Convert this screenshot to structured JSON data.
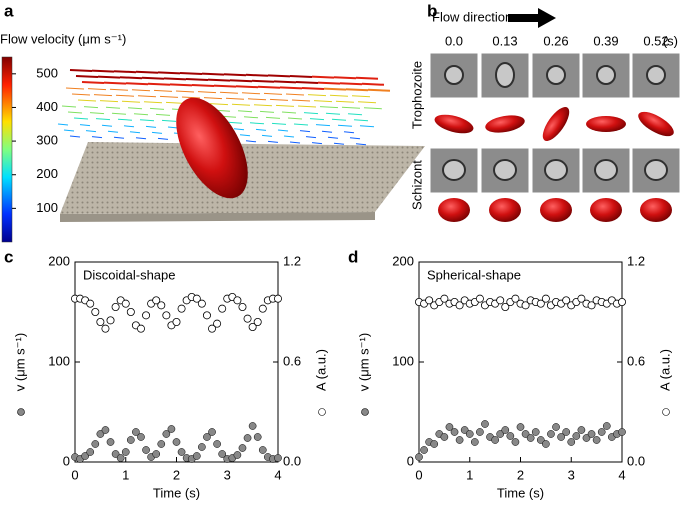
{
  "panels": {
    "a": {
      "label": "a",
      "colorbar_title": "Flow velocity (μm s⁻¹)",
      "clim": [
        0,
        550
      ],
      "cticks": [
        100,
        200,
        300,
        400,
        500
      ]
    },
    "b": {
      "label": "b",
      "flow_label": "Flow direction",
      "times": [
        "0.0",
        "0.13",
        "0.26",
        "0.39",
        "0.52"
      ],
      "time_unit": "(s)",
      "rows": [
        "Trophozoite",
        "Schizont"
      ]
    }
  },
  "chart_data": [
    {
      "type": "scatter",
      "label": "c",
      "annotation": "Discoidal-shape",
      "xlabel": "Time (s)",
      "ylabel": "v (μm s⁻¹)",
      "y2label": "A (a.u.)",
      "x": [
        0,
        0.1,
        0.2,
        0.3,
        0.4,
        0.5,
        0.6,
        0.7,
        0.8,
        0.9,
        1.0,
        1.1,
        1.2,
        1.3,
        1.4,
        1.5,
        1.6,
        1.7,
        1.8,
        1.9,
        2.0,
        2.1,
        2.2,
        2.3,
        2.4,
        2.5,
        2.6,
        2.7,
        2.8,
        2.9,
        3.0,
        3.1,
        3.2,
        3.3,
        3.4,
        3.5,
        3.6,
        3.7,
        3.8,
        3.9,
        4.0
      ],
      "xlim": [
        0,
        4
      ],
      "xticks": [
        0,
        1,
        2,
        3,
        4
      ],
      "ylim": [
        0,
        200
      ],
      "yticks": [
        0,
        100,
        200
      ],
      "y2lim": [
        0,
        1.2
      ],
      "y2ticks": [
        {
          "value": 0,
          "label": "0.0"
        },
        0.6,
        1.2
      ],
      "series": [
        {
          "color": "#888888",
          "marker_fill": "filled",
          "values": [
            5,
            3,
            6,
            10,
            18,
            28,
            32,
            20,
            8,
            4,
            10,
            22,
            30,
            25,
            12,
            5,
            8,
            18,
            28,
            33,
            20,
            10,
            4,
            3,
            6,
            15,
            25,
            30,
            18,
            8,
            3,
            4,
            7,
            14,
            24,
            36,
            25,
            12,
            5,
            3,
            4
          ]
        },
        {
          "color": "#ffffff",
          "marker_fill": "open",
          "axis": "y2",
          "values": [
            0.98,
            0.98,
            0.97,
            0.95,
            0.9,
            0.84,
            0.8,
            0.85,
            0.93,
            0.97,
            0.95,
            0.9,
            0.82,
            0.8,
            0.88,
            0.95,
            0.97,
            0.94,
            0.88,
            0.82,
            0.84,
            0.92,
            0.97,
            0.99,
            0.98,
            0.95,
            0.88,
            0.8,
            0.83,
            0.92,
            0.98,
            0.99,
            0.97,
            0.93,
            0.86,
            0.81,
            0.84,
            0.92,
            0.97,
            0.98,
            0.98
          ]
        }
      ]
    },
    {
      "type": "scatter",
      "label": "d",
      "annotation": "Spherical-shape",
      "xlabel": "Time (s)",
      "ylabel": "v (μm s⁻¹)",
      "y2label": "A (a.u.)",
      "x": [
        0,
        0.1,
        0.2,
        0.3,
        0.4,
        0.5,
        0.6,
        0.7,
        0.8,
        0.9,
        1.0,
        1.1,
        1.2,
        1.3,
        1.4,
        1.5,
        1.6,
        1.7,
        1.8,
        1.9,
        2.0,
        2.1,
        2.2,
        2.3,
        2.4,
        2.5,
        2.6,
        2.7,
        2.8,
        2.9,
        3.0,
        3.1,
        3.2,
        3.3,
        3.4,
        3.5,
        3.6,
        3.7,
        3.8,
        3.9,
        4.0
      ],
      "xlim": [
        0,
        4
      ],
      "xticks": [
        0,
        1,
        2,
        3,
        4
      ],
      "ylim": [
        0,
        200
      ],
      "yticks": [
        0,
        100,
        200
      ],
      "y2lim": [
        0,
        1.2
      ],
      "y2ticks": [
        {
          "value": 0,
          "label": "0.0"
        },
        0.6,
        1.2
      ],
      "series": [
        {
          "color": "#888888",
          "marker_fill": "filled",
          "values": [
            5,
            12,
            20,
            18,
            28,
            25,
            35,
            30,
            22,
            32,
            28,
            20,
            30,
            38,
            25,
            22,
            28,
            32,
            26,
            20,
            35,
            28,
            24,
            30,
            22,
            18,
            28,
            35,
            25,
            30,
            20,
            26,
            32,
            24,
            28,
            22,
            30,
            36,
            25,
            28,
            30
          ]
        },
        {
          "color": "#ffffff",
          "marker_fill": "open",
          "axis": "y2",
          "values": [
            0.96,
            0.95,
            0.97,
            0.94,
            0.96,
            0.98,
            0.95,
            0.96,
            0.94,
            0.97,
            0.95,
            0.96,
            0.98,
            0.94,
            0.96,
            0.95,
            0.97,
            0.93,
            0.96,
            0.98,
            0.95,
            0.94,
            0.97,
            0.96,
            0.95,
            0.98,
            0.94,
            0.96,
            0.95,
            0.97,
            0.94,
            0.96,
            0.98,
            0.95,
            0.94,
            0.97,
            0.96,
            0.95,
            0.97,
            0.95,
            0.96
          ]
        }
      ]
    }
  ]
}
